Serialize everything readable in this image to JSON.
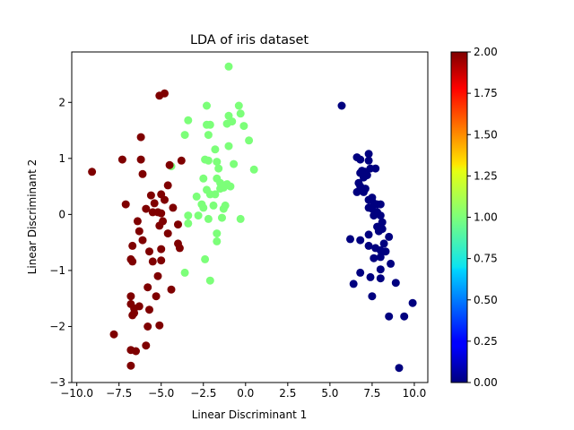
{
  "chart_data": {
    "type": "scatter",
    "title": "LDA of iris dataset",
    "xlabel": "Linear Discriminant 1",
    "ylabel": "Linear Discriminant 2",
    "xlim": [
      -10.3,
      10.8
    ],
    "ylim": [
      -3.0,
      2.9
    ],
    "xticks": [
      -10,
      -7.5,
      -5,
      -2.5,
      0,
      2.5,
      5,
      7.5,
      10
    ],
    "xtick_labels": [
      "−10.0",
      "−7.5",
      "−5.0",
      "−2.5",
      "0.0",
      "2.5",
      "5.0",
      "7.5",
      "10.0"
    ],
    "yticks": [
      -3,
      -2,
      -1,
      0,
      1,
      2
    ],
    "ytick_labels": [
      "−3",
      "−2",
      "−1",
      "0",
      "1",
      "2"
    ],
    "grid": false,
    "legend": "none",
    "colorbar": {
      "colormap": "jet",
      "min": 0.0,
      "max": 2.0,
      "ticks": [
        0,
        0.25,
        0.5,
        0.75,
        1.0,
        1.25,
        1.5,
        1.75,
        2.0
      ],
      "tick_labels": [
        "0.00",
        "0.25",
        "0.50",
        "0.75",
        "1.00",
        "1.25",
        "1.50",
        "1.75",
        "2.00"
      ]
    },
    "series": [
      {
        "class": 0,
        "color": "#00007f",
        "points": [
          [
            5.7,
            1.94
          ],
          [
            6.6,
            1.02
          ],
          [
            6.8,
            0.98
          ],
          [
            7.3,
            1.08
          ],
          [
            7.3,
            0.96
          ],
          [
            7.7,
            0.82
          ],
          [
            6.9,
            0.78
          ],
          [
            6.8,
            0.74
          ],
          [
            7.1,
            0.76
          ],
          [
            7.0,
            0.66
          ],
          [
            7.4,
            0.82
          ],
          [
            6.7,
            0.56
          ],
          [
            7.2,
            0.7
          ],
          [
            6.8,
            0.5
          ],
          [
            7.1,
            0.46
          ],
          [
            6.6,
            0.4
          ],
          [
            7.0,
            0.4
          ],
          [
            7.5,
            0.3
          ],
          [
            7.3,
            0.26
          ],
          [
            7.6,
            0.2
          ],
          [
            7.8,
            0.18
          ],
          [
            8.0,
            0.18
          ],
          [
            7.3,
            0.12
          ],
          [
            7.5,
            0.1
          ],
          [
            7.8,
            0.04
          ],
          [
            7.6,
            -0.02
          ],
          [
            8.0,
            -0.02
          ],
          [
            8.1,
            -0.14
          ],
          [
            7.8,
            -0.22
          ],
          [
            7.9,
            -0.3
          ],
          [
            8.1,
            -0.26
          ],
          [
            8.5,
            -0.4
          ],
          [
            7.3,
            -0.36
          ],
          [
            6.2,
            -0.44
          ],
          [
            6.8,
            -0.46
          ],
          [
            7.3,
            -0.56
          ],
          [
            7.7,
            -0.6
          ],
          [
            8.2,
            -0.52
          ],
          [
            8.0,
            -0.64
          ],
          [
            8.3,
            -0.66
          ],
          [
            8.0,
            -0.76
          ],
          [
            7.6,
            -0.78
          ],
          [
            8.6,
            -0.88
          ],
          [
            8.0,
            -0.98
          ],
          [
            6.8,
            -1.04
          ],
          [
            7.4,
            -1.12
          ],
          [
            8.0,
            -1.14
          ],
          [
            6.4,
            -1.24
          ],
          [
            7.5,
            -1.46
          ],
          [
            8.9,
            -1.22
          ],
          [
            9.9,
            -1.58
          ],
          [
            8.5,
            -1.82
          ],
          [
            9.4,
            -1.82
          ],
          [
            9.1,
            -2.74
          ]
        ]
      },
      {
        "class": 1,
        "color": "#7cff79",
        "points": [
          [
            -1.0,
            2.64
          ],
          [
            -2.3,
            1.94
          ],
          [
            -0.4,
            1.94
          ],
          [
            -0.3,
            1.8
          ],
          [
            -1.0,
            1.76
          ],
          [
            -0.8,
            1.66
          ],
          [
            -1.1,
            1.62
          ],
          [
            -3.4,
            1.68
          ],
          [
            -2.3,
            1.6
          ],
          [
            -2.1,
            1.6
          ],
          [
            -0.1,
            1.58
          ],
          [
            -3.6,
            1.42
          ],
          [
            -2.2,
            1.42
          ],
          [
            -1.0,
            1.22
          ],
          [
            0.2,
            1.32
          ],
          [
            -1.8,
            1.16
          ],
          [
            -2.4,
            0.98
          ],
          [
            -2.2,
            0.96
          ],
          [
            -1.7,
            0.94
          ],
          [
            -0.7,
            0.9
          ],
          [
            -1.6,
            0.82
          ],
          [
            0.5,
            0.8
          ],
          [
            -4.4,
            0.86
          ],
          [
            -2.5,
            0.64
          ],
          [
            -1.7,
            0.64
          ],
          [
            -1.5,
            0.56
          ],
          [
            -1.1,
            0.54
          ],
          [
            -0.9,
            0.5
          ],
          [
            -1.5,
            0.46
          ],
          [
            -1.3,
            0.48
          ],
          [
            -2.3,
            0.44
          ],
          [
            -2.1,
            0.36
          ],
          [
            -1.8,
            0.36
          ],
          [
            -2.9,
            0.32
          ],
          [
            -2.6,
            0.18
          ],
          [
            -1.9,
            0.16
          ],
          [
            -1.2,
            0.16
          ],
          [
            -2.5,
            0.12
          ],
          [
            -1.3,
            0.1
          ],
          [
            -2.8,
            -0.02
          ],
          [
            -3.4,
            -0.02
          ],
          [
            -2.2,
            -0.08
          ],
          [
            -1.4,
            -0.06
          ],
          [
            -0.3,
            -0.08
          ],
          [
            -3.4,
            -0.16
          ],
          [
            -1.7,
            -0.34
          ],
          [
            -1.7,
            -0.48
          ],
          [
            -2.4,
            -0.8
          ],
          [
            -3.6,
            -1.04
          ],
          [
            -2.1,
            -1.18
          ]
        ]
      },
      {
        "class": 2,
        "color": "#7f0000",
        "points": [
          [
            -4.8,
            2.16
          ],
          [
            -5.1,
            2.12
          ],
          [
            -6.2,
            1.38
          ],
          [
            -9.1,
            0.76
          ],
          [
            -7.3,
            0.98
          ],
          [
            -6.2,
            0.98
          ],
          [
            -3.8,
            0.96
          ],
          [
            -4.5,
            0.88
          ],
          [
            -6.1,
            0.72
          ],
          [
            -4.6,
            0.52
          ],
          [
            -5.0,
            0.36
          ],
          [
            -5.6,
            0.34
          ],
          [
            -4.8,
            0.26
          ],
          [
            -5.4,
            0.2
          ],
          [
            -7.1,
            0.18
          ],
          [
            -4.3,
            0.12
          ],
          [
            -5.9,
            0.1
          ],
          [
            -5.5,
            0.04
          ],
          [
            -5.2,
            0.04
          ],
          [
            -5.0,
            0.02
          ],
          [
            -4.9,
            -0.12
          ],
          [
            -6.4,
            -0.12
          ],
          [
            -4.0,
            -0.18
          ],
          [
            -5.1,
            -0.2
          ],
          [
            -6.3,
            -0.3
          ],
          [
            -4.6,
            -0.34
          ],
          [
            -6.1,
            -0.46
          ],
          [
            -4.0,
            -0.52
          ],
          [
            -6.7,
            -0.56
          ],
          [
            -3.9,
            -0.6
          ],
          [
            -5.0,
            -0.62
          ],
          [
            -5.7,
            -0.66
          ],
          [
            -6.8,
            -0.8
          ],
          [
            -6.7,
            -0.84
          ],
          [
            -5.5,
            -0.84
          ],
          [
            -5.0,
            -0.82
          ],
          [
            -5.2,
            -1.1
          ],
          [
            -5.8,
            -1.3
          ],
          [
            -4.4,
            -1.34
          ],
          [
            -6.8,
            -1.46
          ],
          [
            -5.3,
            -1.46
          ],
          [
            -6.8,
            -1.6
          ],
          [
            -6.3,
            -1.64
          ],
          [
            -6.6,
            -1.68
          ],
          [
            -6.6,
            -1.76
          ],
          [
            -5.7,
            -1.7
          ],
          [
            -6.7,
            -1.8
          ],
          [
            -5.8,
            -2.0
          ],
          [
            -5.1,
            -1.98
          ],
          [
            -7.8,
            -2.14
          ],
          [
            -5.9,
            -2.34
          ],
          [
            -6.8,
            -2.42
          ],
          [
            -6.5,
            -2.44
          ],
          [
            -6.8,
            -2.7
          ]
        ]
      }
    ]
  }
}
